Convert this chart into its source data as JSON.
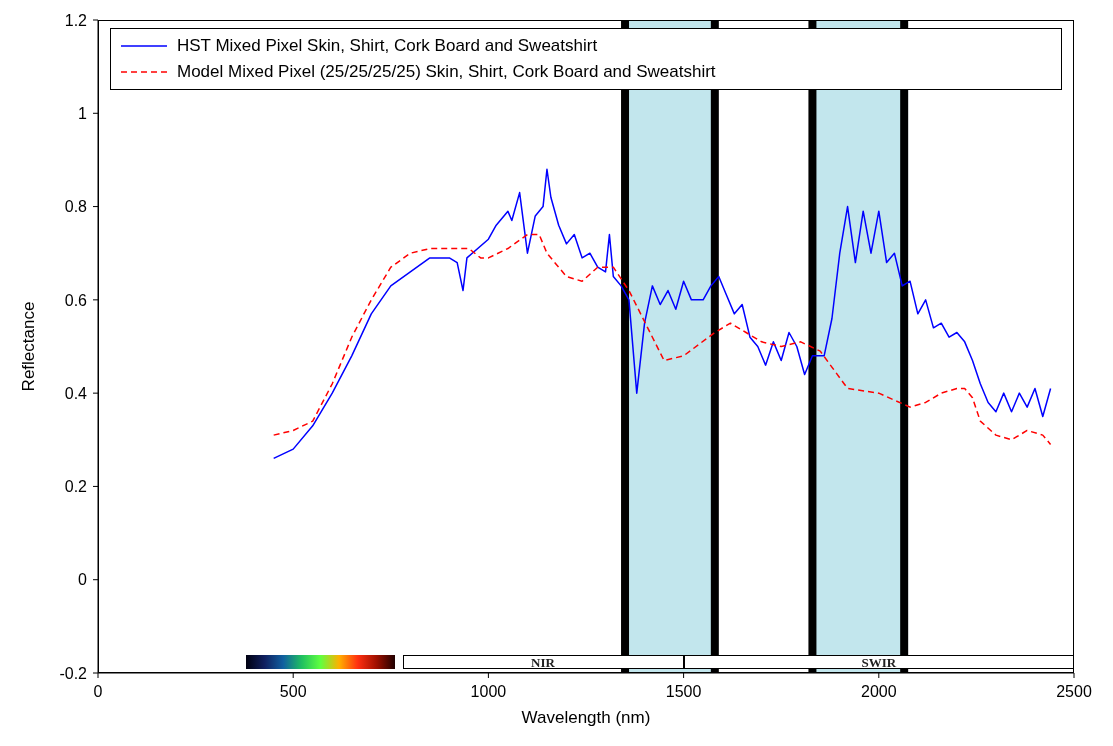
{
  "chart_data": {
    "type": "line",
    "xlabel": "Wavelength (nm)",
    "ylabel": "Reflectance",
    "xlim": [
      0,
      2500
    ],
    "xticks": [
      0,
      500,
      1000,
      1500,
      2000,
      2500
    ],
    "ylim": [
      -0.2,
      1.2
    ],
    "yticks": [
      -0.2,
      0,
      0.2,
      0.4,
      0.6,
      0.8,
      1,
      1.2
    ],
    "legend": "top",
    "marker": "none",
    "series": [
      {
        "name": "HST Mixed Pixel Skin, Shirt, Cork Board and Sweatshirt",
        "color": "#0000ff",
        "line_style": "solid",
        "x": [
          450,
          500,
          550,
          600,
          650,
          700,
          750,
          800,
          850,
          900,
          920,
          935,
          945,
          1000,
          1020,
          1050,
          1060,
          1080,
          1100,
          1120,
          1140,
          1150,
          1160,
          1180,
          1200,
          1220,
          1240,
          1260,
          1280,
          1300,
          1310,
          1320,
          1340,
          1360,
          1380,
          1400,
          1420,
          1440,
          1460,
          1480,
          1500,
          1520,
          1550,
          1570,
          1590,
          1610,
          1630,
          1650,
          1670,
          1690,
          1710,
          1730,
          1750,
          1770,
          1790,
          1810,
          1830,
          1860,
          1880,
          1900,
          1920,
          1940,
          1960,
          1980,
          2000,
          2020,
          2040,
          2060,
          2080,
          2100,
          2120,
          2140,
          2160,
          2180,
          2200,
          2220,
          2240,
          2260,
          2280,
          2300,
          2320,
          2340,
          2360,
          2380,
          2400,
          2420,
          2440
        ],
        "values": [
          0.26,
          0.28,
          0.33,
          0.4,
          0.48,
          0.57,
          0.63,
          0.66,
          0.69,
          0.69,
          0.68,
          0.62,
          0.69,
          0.73,
          0.76,
          0.79,
          0.77,
          0.83,
          0.7,
          0.78,
          0.8,
          0.88,
          0.82,
          0.76,
          0.72,
          0.74,
          0.69,
          0.7,
          0.67,
          0.66,
          0.74,
          0.65,
          0.63,
          0.6,
          0.4,
          0.55,
          0.63,
          0.59,
          0.62,
          0.58,
          0.64,
          0.6,
          0.6,
          0.63,
          0.65,
          0.61,
          0.57,
          0.59,
          0.52,
          0.5,
          0.46,
          0.51,
          0.47,
          0.53,
          0.5,
          0.44,
          0.48,
          0.48,
          0.56,
          0.7,
          0.8,
          0.68,
          0.79,
          0.7,
          0.79,
          0.68,
          0.7,
          0.63,
          0.64,
          0.57,
          0.6,
          0.54,
          0.55,
          0.52,
          0.53,
          0.51,
          0.47,
          0.42,
          0.38,
          0.36,
          0.4,
          0.36,
          0.4,
          0.37,
          0.41,
          0.35,
          0.41
        ]
      },
      {
        "name": "Model Mixed Pixel (25/25/25/25) Skin, Shirt, Cork Board and Sweatshirt",
        "color": "#ff0000",
        "line_style": "dashed",
        "x": [
          450,
          500,
          550,
          600,
          650,
          700,
          750,
          800,
          850,
          900,
          950,
          980,
          1000,
          1050,
          1100,
          1130,
          1150,
          1200,
          1240,
          1280,
          1320,
          1360,
          1450,
          1500,
          1580,
          1620,
          1660,
          1700,
          1750,
          1800,
          1850,
          1920,
          2000,
          2080,
          2120,
          2160,
          2200,
          2220,
          2240,
          2260,
          2300,
          2340,
          2380,
          2420,
          2440
        ],
        "values": [
          0.31,
          0.32,
          0.34,
          0.42,
          0.52,
          0.6,
          0.67,
          0.7,
          0.71,
          0.71,
          0.71,
          0.69,
          0.69,
          0.71,
          0.74,
          0.74,
          0.7,
          0.65,
          0.64,
          0.67,
          0.67,
          0.62,
          0.47,
          0.48,
          0.53,
          0.55,
          0.53,
          0.51,
          0.5,
          0.51,
          0.49,
          0.41,
          0.4,
          0.37,
          0.38,
          0.4,
          0.41,
          0.41,
          0.39,
          0.34,
          0.31,
          0.3,
          0.32,
          0.31,
          0.29
        ]
      }
    ],
    "bands": [
      {
        "axis": "x",
        "from": 1350,
        "to": 1580,
        "color": "#a8dbe6"
      },
      {
        "axis": "x",
        "from": 1830,
        "to": 2065,
        "color": "#a8dbe6"
      }
    ],
    "annotations": [
      "NIR",
      "SWIR"
    ]
  }
}
